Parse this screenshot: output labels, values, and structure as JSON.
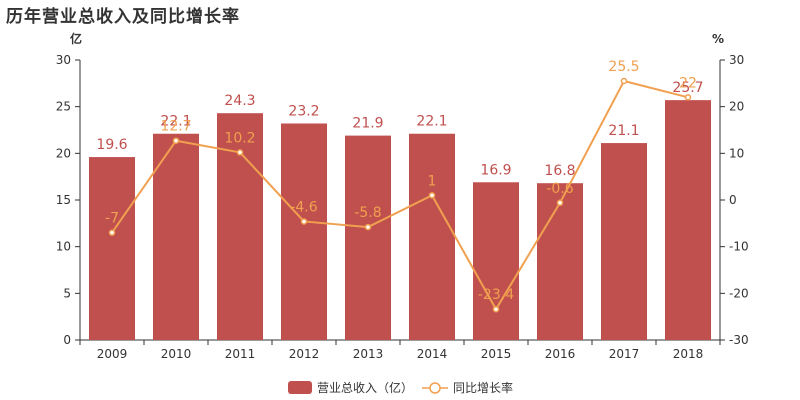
{
  "chart_data": {
    "type": "bar",
    "title": "历年营业总收入及同比增长率",
    "categories": [
      "2009",
      "2010",
      "2011",
      "2012",
      "2013",
      "2014",
      "2015",
      "2016",
      "2017",
      "2018"
    ],
    "series": [
      {
        "name": "营业总收入（亿）",
        "type": "bar",
        "axis": "left",
        "color": "#c0504d",
        "label_color": "#c0504d",
        "values": [
          19.6,
          22.1,
          24.3,
          23.2,
          21.9,
          22.1,
          16.9,
          16.8,
          21.1,
          25.7
        ]
      },
      {
        "name": "同比增长率",
        "type": "line",
        "axis": "right",
        "color": "#f0a050",
        "label_color": "#f0a050",
        "values": [
          -7,
          12.7,
          10.2,
          -4.6,
          -5.8,
          1,
          -23.4,
          -0.6,
          25.5,
          22
        ]
      }
    ],
    "y_left": {
      "unit": "亿",
      "min": 0,
      "max": 30,
      "ticks": [
        0,
        5,
        10,
        15,
        20,
        25,
        30
      ]
    },
    "y_right": {
      "unit": "%",
      "min": -30,
      "max": 30,
      "ticks": [
        -30,
        -20,
        -10,
        0,
        10,
        20,
        30
      ]
    },
    "grid": false,
    "legend_position": "bottom"
  }
}
